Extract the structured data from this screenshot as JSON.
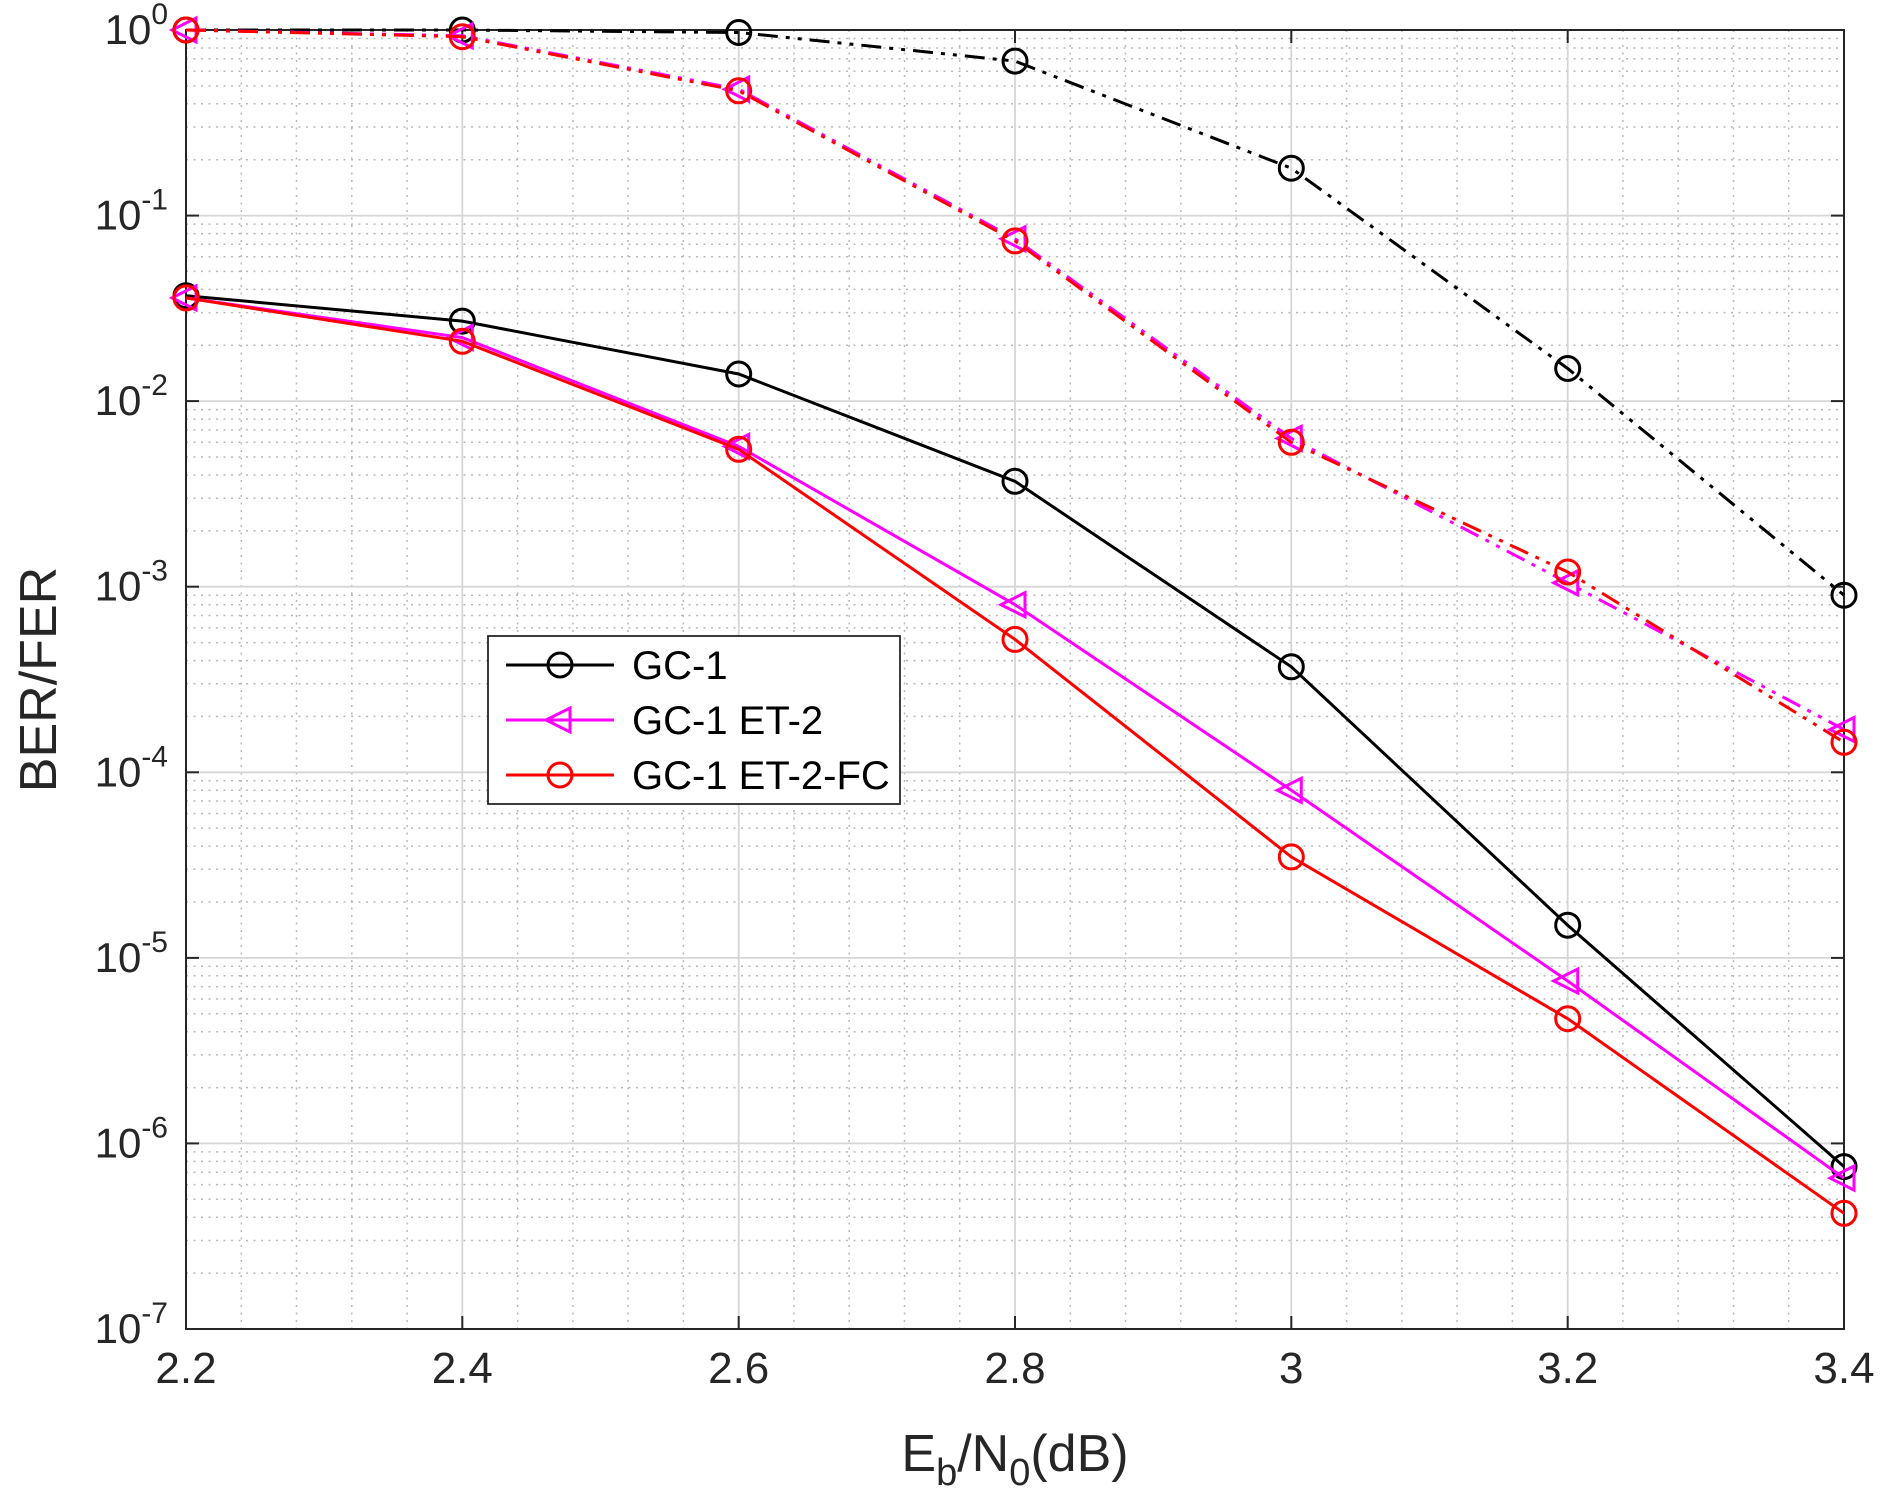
{
  "chart_data": {
    "type": "line",
    "title": "",
    "xlabel_parts": [
      {
        "t": "E",
        "sub": false
      },
      {
        "t": "b",
        "sub": true
      },
      {
        "t": "/N",
        "sub": false
      },
      {
        "t": "0",
        "sub": true
      },
      {
        "t": "(dB)",
        "sub": false
      }
    ],
    "ylabel": "BER/FER",
    "xlim": [
      2.2,
      3.4
    ],
    "ylim": [
      1e-07,
      1
    ],
    "x_ticks": [
      2.2,
      2.4,
      2.6,
      2.8,
      3,
      3.2,
      3.4
    ],
    "x_tick_labels": [
      "2.2",
      "2.4",
      "2.6",
      "2.8",
      "3",
      "3.2",
      "3.4"
    ],
    "ylog_exponents": [
      0,
      -1,
      -2,
      -3,
      -4,
      -5,
      -6,
      -7
    ],
    "grid": true,
    "minor_grid": true,
    "x": [
      2.2,
      2.4,
      2.6,
      2.8,
      3.0,
      3.2,
      3.4
    ],
    "series": [
      {
        "name": "GC-1 FER",
        "color": "#000000",
        "style": "dashdot",
        "marker": "circle",
        "values": [
          1.0,
          1.0,
          0.97,
          0.68,
          0.18,
          0.015,
          0.0009
        ]
      },
      {
        "name": "GC-1 ET-2 FER",
        "color": "#ff00ff",
        "style": "dashdot",
        "marker": "triangle-left",
        "values": [
          1.0,
          0.93,
          0.48,
          0.075,
          0.0063,
          0.00105,
          0.00017
        ]
      },
      {
        "name": "GC-1 ET-2-FC FER",
        "color": "#ff0000",
        "style": "dashdot",
        "marker": "circle",
        "values": [
          1.0,
          0.92,
          0.47,
          0.073,
          0.006,
          0.0012,
          0.000145
        ]
      },
      {
        "name": "GC-1",
        "color": "#000000",
        "style": "solid",
        "marker": "circle",
        "values": [
          0.037,
          0.027,
          0.014,
          0.0037,
          0.00037,
          1.5e-05,
          7.5e-07
        ]
      },
      {
        "name": "GC-1 ET-2",
        "color": "#ff00ff",
        "style": "solid",
        "marker": "triangle-left",
        "values": [
          0.036,
          0.022,
          0.0057,
          0.0008,
          8e-05,
          7.5e-06,
          6.5e-07
        ]
      },
      {
        "name": "GC-1 ET-2-FC",
        "color": "#ff0000",
        "style": "solid",
        "marker": "circle",
        "values": [
          0.036,
          0.021,
          0.0055,
          0.00052,
          3.5e-05,
          4.7e-06,
          4.2e-07
        ]
      }
    ],
    "legend": {
      "position": "left-center-inside",
      "entries": [
        {
          "label": "GC-1",
          "color": "#000000",
          "marker": "circle"
        },
        {
          "label": "GC-1 ET-2",
          "color": "#ff00ff",
          "marker": "triangle-left"
        },
        {
          "label": "GC-1 ET-2-FC",
          "color": "#ff0000",
          "marker": "circle"
        }
      ]
    },
    "colors": {
      "axis": "#262626",
      "major_grid": "#d6d6d6",
      "minor_grid": "#b9b9b9",
      "background": "#ffffff"
    }
  }
}
